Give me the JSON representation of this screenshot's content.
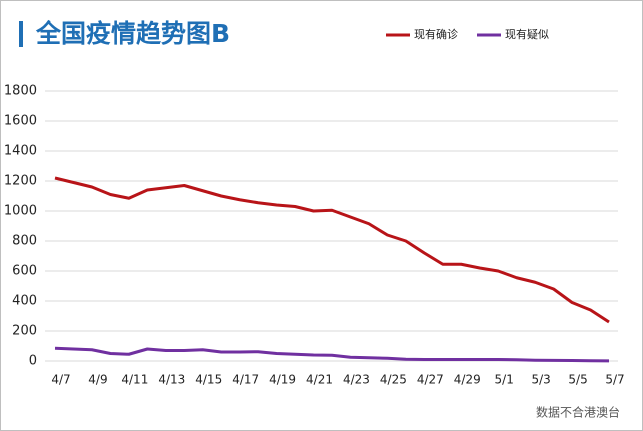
{
  "chart_data": {
    "type": "line",
    "title": "全国疫情趋势图B",
    "source": "数据不合港澳台",
    "categories": [
      "4/7",
      null,
      "4/9",
      null,
      "4/11",
      null,
      "4/13",
      null,
      "4/15",
      null,
      "4/17",
      null,
      "4/19",
      null,
      "4/21",
      null,
      "4/23",
      null,
      "4/25",
      null,
      "4/27",
      null,
      "4/29",
      null,
      "5/1",
      null,
      "5/3",
      null,
      "5/5",
      null,
      "5/7"
    ],
    "series": [
      {
        "name": "现有确诊",
        "color": "#b81418",
        "values": [
          1220,
          1190,
          1160,
          1110,
          1085,
          1140,
          1155,
          1170,
          1135,
          1100,
          1075,
          1055,
          1040,
          1030,
          1000,
          1005,
          960,
          915,
          840,
          800,
          720,
          645,
          645,
          620,
          600,
          555,
          525,
          480,
          390,
          340,
          260
        ]
      },
      {
        "name": "现有疑似",
        "color": "#7030a0",
        "values": [
          85,
          80,
          75,
          50,
          45,
          80,
          70,
          70,
          75,
          60,
          60,
          62,
          50,
          45,
          40,
          38,
          25,
          22,
          18,
          12,
          10,
          10,
          10,
          10,
          10,
          8,
          5,
          4,
          3,
          2,
          1
        ]
      }
    ],
    "ylim": [
      0,
      1800
    ],
    "yticks": [
      0,
      200,
      400,
      600,
      800,
      1000,
      1200,
      1400,
      1600,
      1800
    ],
    "grid": true,
    "legend": "top-right"
  }
}
